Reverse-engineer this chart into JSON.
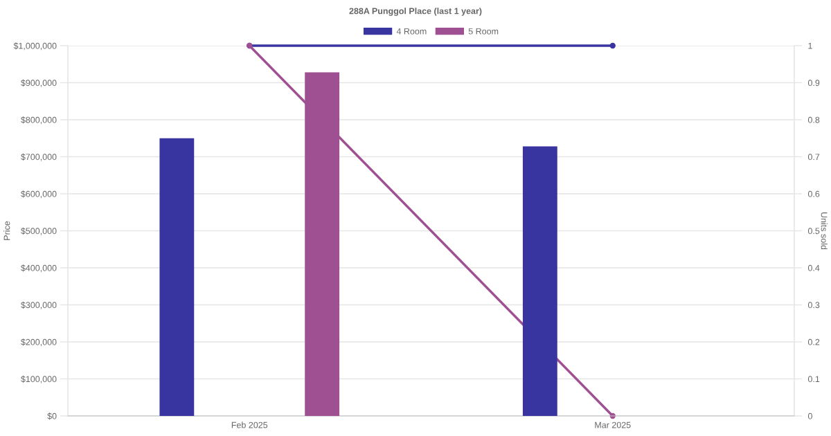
{
  "chart_data": {
    "type": "bar",
    "title": "288A Punggol Place (last 1 year)",
    "ylabel": "Price",
    "y2label": "Units sold",
    "categories": [
      "Feb 2025",
      "Mar 2025"
    ],
    "series": [
      {
        "name": "4 Room",
        "color": "#3935a0",
        "values": [
          750000,
          728000
        ]
      },
      {
        "name": "5 Room",
        "color": "#9e5093",
        "values": [
          928000,
          null
        ]
      },
      {
        "type": "line",
        "axis": "y2",
        "color": "#3935a0",
        "values": [
          1,
          1
        ]
      },
      {
        "type": "line",
        "axis": "y2",
        "color": "#9e5093",
        "values": [
          1,
          0
        ]
      }
    ],
    "ylim": [
      0,
      1000000
    ],
    "yticks": [
      {
        "value": 0,
        "label": "$0"
      },
      {
        "value": 100000,
        "label": "$100,000"
      },
      {
        "value": 200000,
        "label": "$200,000"
      },
      {
        "value": 300000,
        "label": "$300,000"
      },
      {
        "value": 400000,
        "label": "$400,000"
      },
      {
        "value": 500000,
        "label": "$500,000"
      },
      {
        "value": 600000,
        "label": "$600,000"
      },
      {
        "value": 700000,
        "label": "$700,000"
      },
      {
        "value": 800000,
        "label": "$800,000"
      },
      {
        "value": 900000,
        "label": "$900,000"
      },
      {
        "value": 1000000,
        "label": "$1,000,000"
      }
    ],
    "y2lim": [
      0,
      1
    ],
    "y2ticks": [
      0,
      0.1,
      0.2,
      0.3,
      0.4,
      0.5,
      0.6,
      0.7,
      0.8,
      0.9,
      1
    ],
    "grid": "y",
    "legend": "top",
    "marker": "circle",
    "line_style": "solid"
  }
}
